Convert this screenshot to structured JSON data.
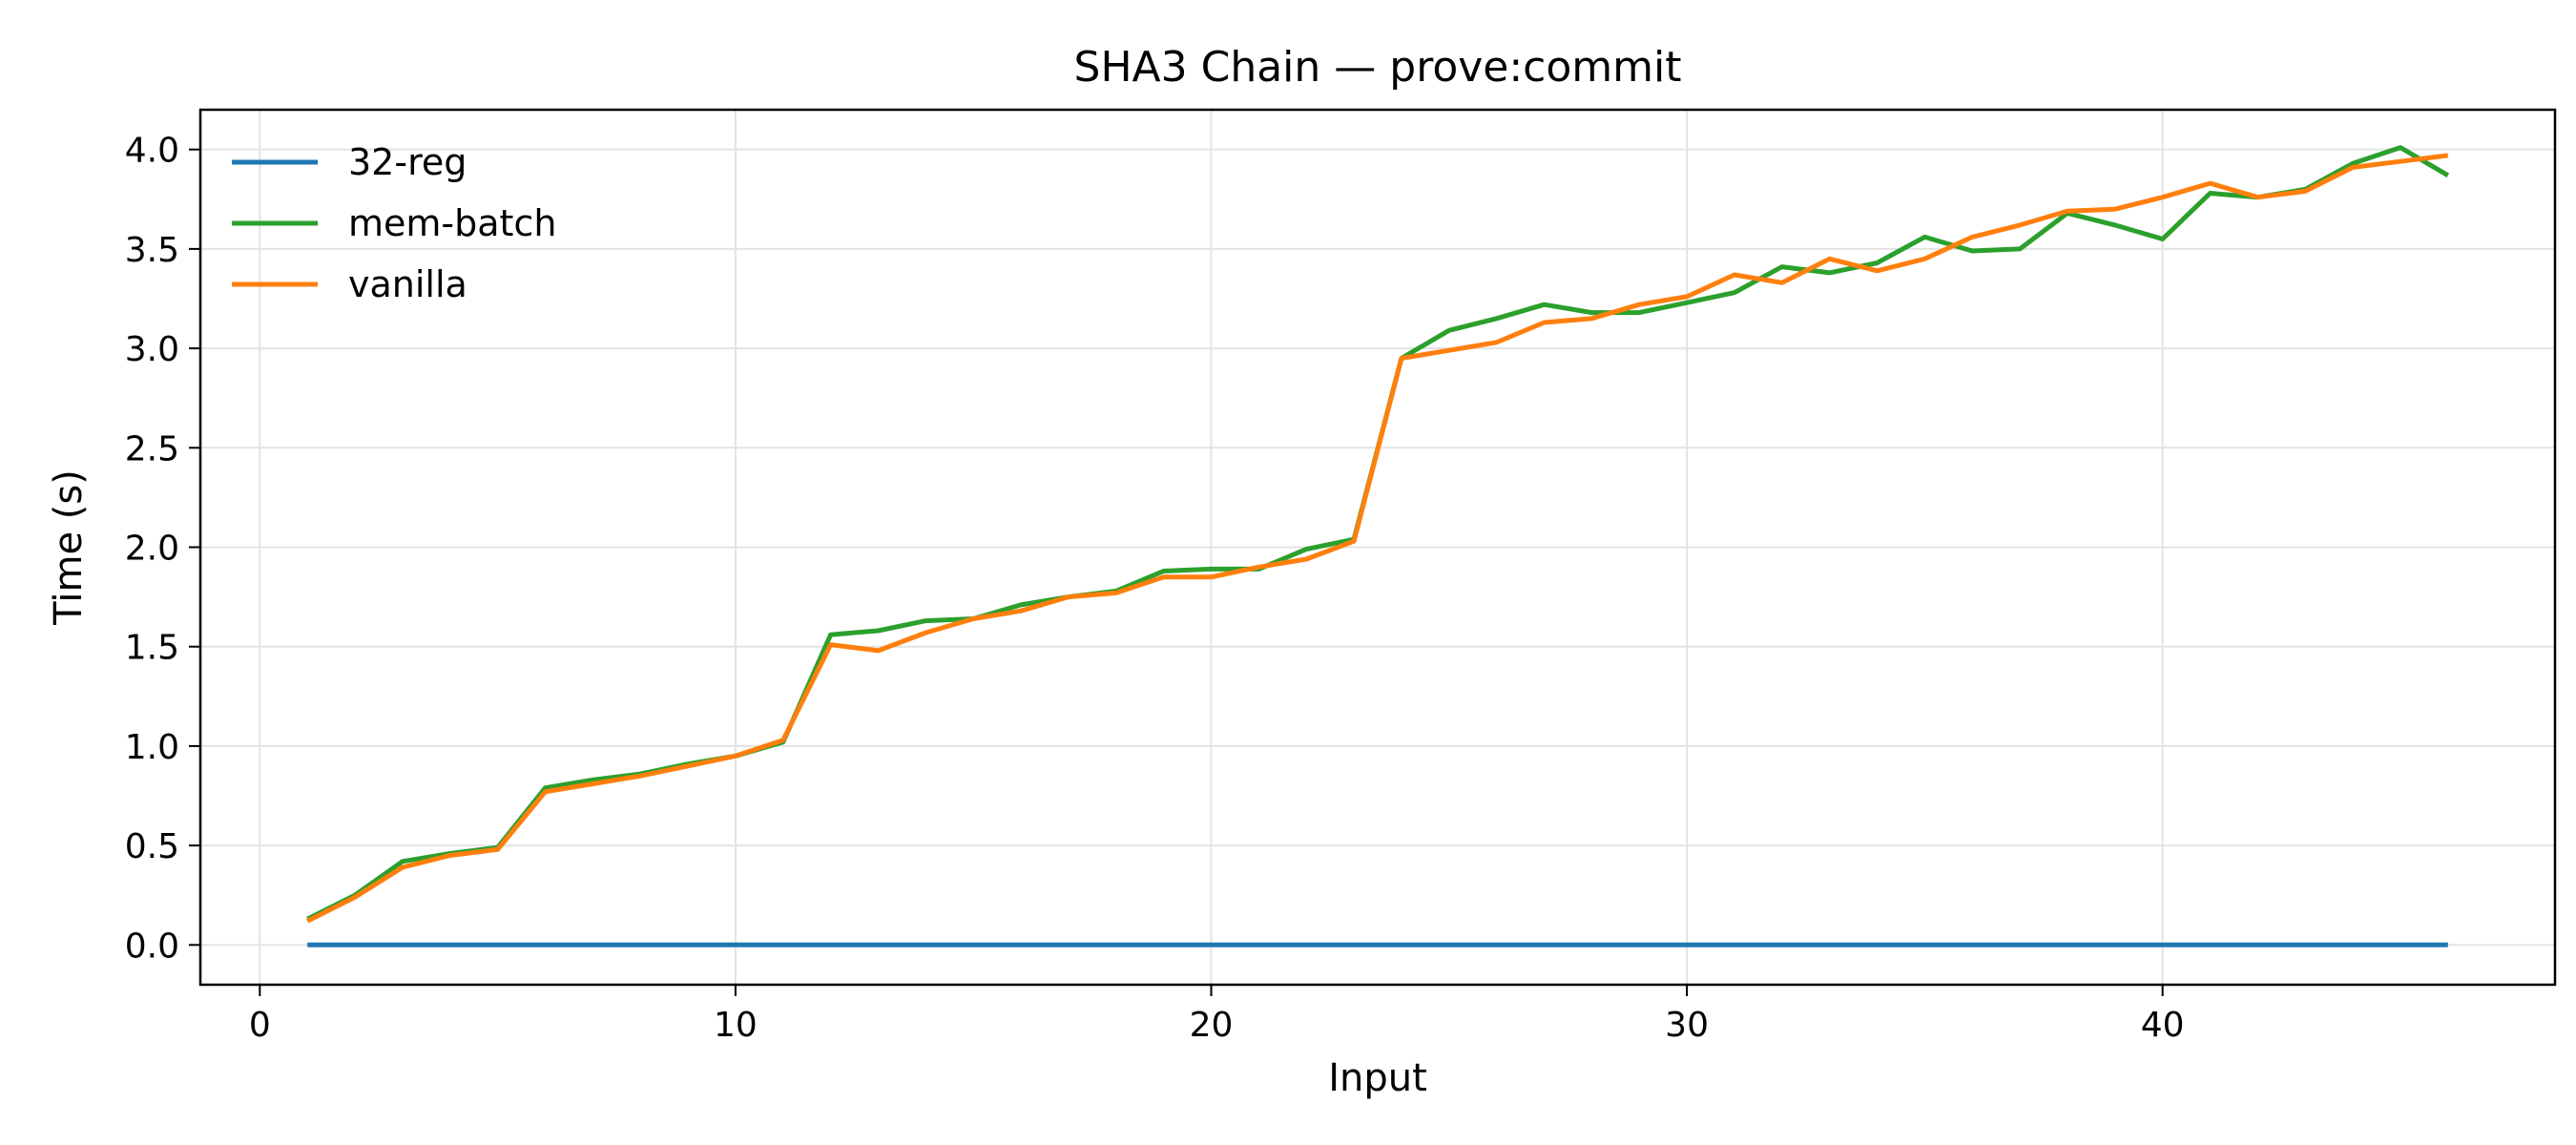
{
  "chart_data": {
    "type": "line",
    "title": "SHA3 Chain — prove:commit",
    "xlabel": "Input",
    "ylabel": "Time (s)",
    "xlim": [
      -1.25,
      48.25
    ],
    "ylim": [
      -0.2,
      4.2
    ],
    "xticks": [
      0,
      10,
      20,
      30,
      40
    ],
    "yticks": [
      0.0,
      0.5,
      1.0,
      1.5,
      2.0,
      2.5,
      3.0,
      3.5,
      4.0
    ],
    "ytick_labels": [
      "0.0",
      "0.5",
      "1.0",
      "1.5",
      "2.0",
      "2.5",
      "3.0",
      "3.5",
      "4.0"
    ],
    "grid": true,
    "legend_position": "top-left",
    "x": [
      1,
      2,
      3,
      4,
      5,
      6,
      7,
      8,
      9,
      10,
      11,
      12,
      13,
      14,
      15,
      16,
      17,
      18,
      19,
      20,
      21,
      22,
      23,
      24,
      25,
      26,
      27,
      28,
      29,
      30,
      31,
      32,
      33,
      34,
      35,
      36,
      37,
      38,
      39,
      40,
      41,
      42,
      43,
      44,
      45,
      46
    ],
    "series": [
      {
        "name": "32-reg",
        "color": "#1f77b4",
        "values": [
          0,
          0,
          0,
          0,
          0,
          0,
          0,
          0,
          0,
          0,
          0,
          0,
          0,
          0,
          0,
          0,
          0,
          0,
          0,
          0,
          0,
          0,
          0,
          0,
          0,
          0,
          0,
          0,
          0,
          0,
          0,
          0,
          0,
          0,
          0,
          0,
          0,
          0,
          0,
          0,
          0,
          0,
          0,
          0,
          0,
          0
        ]
      },
      {
        "name": "mem-batch",
        "color": "#2ca02c",
        "values": [
          0.13,
          0.25,
          0.42,
          0.46,
          0.49,
          0.79,
          0.83,
          0.86,
          0.91,
          0.95,
          1.02,
          1.56,
          1.58,
          1.63,
          1.64,
          1.71,
          1.75,
          1.78,
          1.88,
          1.89,
          1.89,
          1.99,
          2.04,
          2.95,
          3.09,
          3.15,
          3.22,
          3.18,
          3.18,
          3.23,
          3.28,
          3.41,
          3.38,
          3.43,
          3.56,
          3.49,
          3.5,
          3.68,
          3.62,
          3.55,
          3.78,
          3.76,
          3.8,
          3.93,
          4.01,
          3.87
        ]
      },
      {
        "name": "vanilla",
        "color": "#ff7f0e",
        "values": [
          0.12,
          0.24,
          0.39,
          0.45,
          0.48,
          0.77,
          0.81,
          0.85,
          0.9,
          0.95,
          1.03,
          1.51,
          1.48,
          1.57,
          1.64,
          1.68,
          1.75,
          1.77,
          1.85,
          1.85,
          1.9,
          1.94,
          2.03,
          2.95,
          2.99,
          3.03,
          3.13,
          3.15,
          3.22,
          3.26,
          3.37,
          3.33,
          3.45,
          3.39,
          3.45,
          3.56,
          3.62,
          3.69,
          3.7,
          3.76,
          3.83,
          3.76,
          3.79,
          3.91,
          3.94,
          3.97
        ]
      }
    ]
  }
}
